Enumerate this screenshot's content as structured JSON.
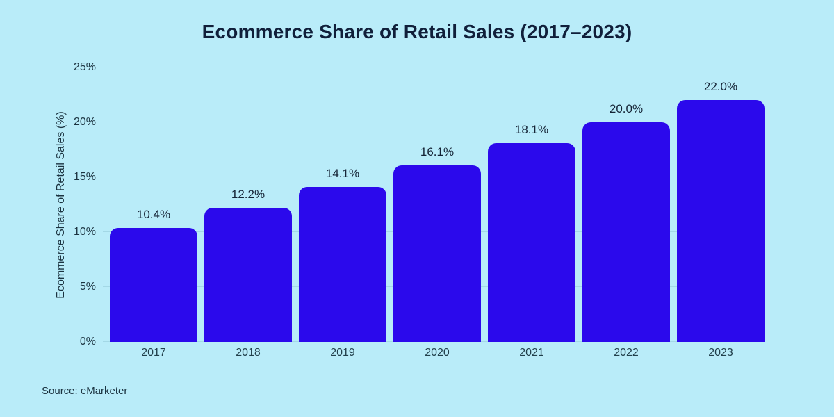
{
  "page": {
    "background_color": "#b9ecf9",
    "text_color": "#1b3340",
    "title_color": "#101f3a"
  },
  "title": "Ecommerce Share of Retail Sales (2017–2023)",
  "source": "Source: eMarketer",
  "chart_data": {
    "type": "bar",
    "title": "Ecommerce Share of Retail Sales (2017–2023)",
    "categories": [
      "2017",
      "2018",
      "2019",
      "2020",
      "2021",
      "2022",
      "2023"
    ],
    "values": [
      10.4,
      12.2,
      14.1,
      16.1,
      18.1,
      20.0,
      22.0
    ],
    "value_labels": [
      "10.4%",
      "12.2%",
      "14.1%",
      "16.1%",
      "18.1%",
      "20.0%",
      "22.0%"
    ],
    "xlabel": "",
    "ylabel": "Ecommerce Share of Retail Sales (%)",
    "ylim": [
      0,
      25
    ],
    "yticks": [
      0,
      5,
      10,
      15,
      20,
      25
    ],
    "ytick_labels": [
      "0%",
      "5%",
      "10%",
      "15%",
      "20%",
      "25%"
    ],
    "grid": true,
    "legend": "none",
    "bar_color": "#2b09ec",
    "bar_corner_radius_px": 12
  }
}
